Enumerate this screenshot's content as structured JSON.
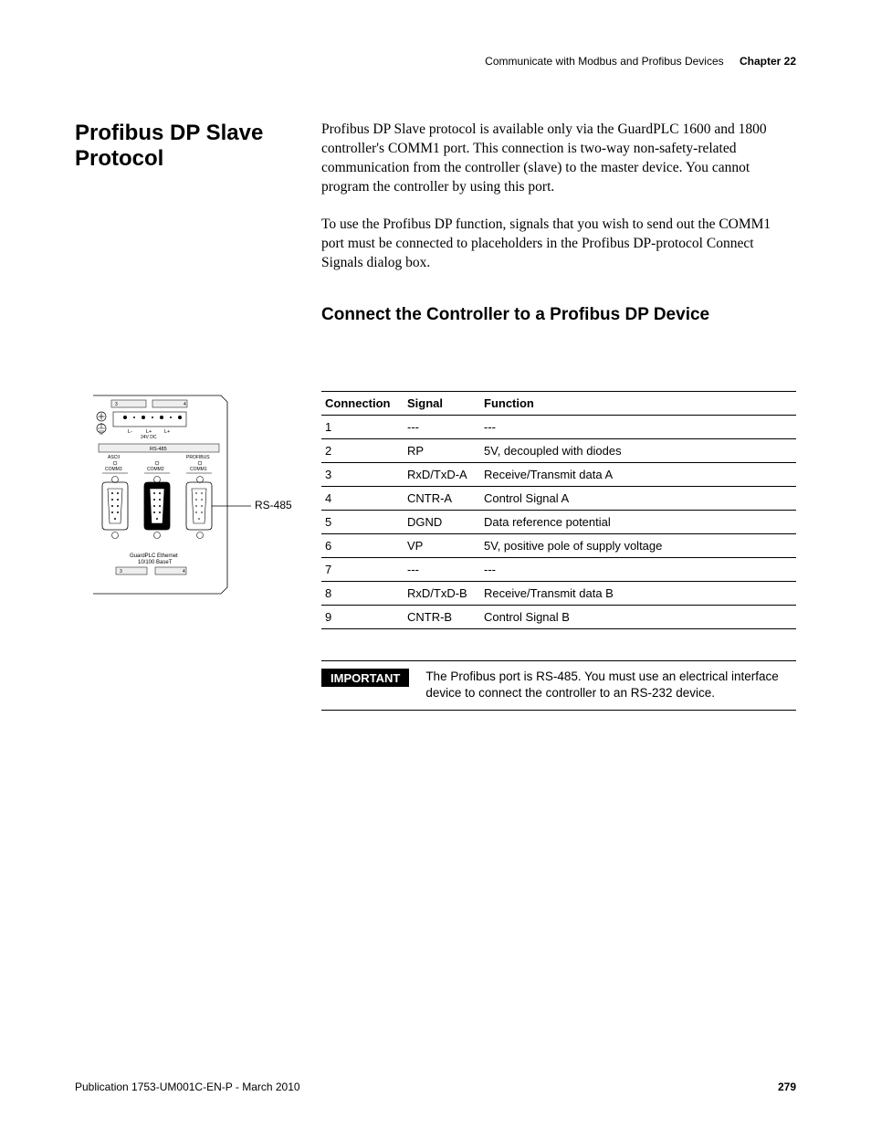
{
  "header": {
    "breadcrumb": "Communicate with Modbus and Profibus Devices",
    "chapter": "Chapter 22"
  },
  "sideHeading": "Profibus DP Slave Protocol",
  "para1": "Profibus DP Slave protocol is available only via the GuardPLC 1600 and 1800 controller's COMM1 port. This connection is two-way non-safety-related communication from the controller (slave) to the master device. You cannot program the controller by using this port.",
  "para2": "To use the Profibus DP function, signals that you wish to send out the COMM1 port must be connected to placeholders in the Profibus DP-protocol Connect Signals dialog box.",
  "subheading": "Connect the Controller to a Profibus DP Device",
  "diagram": {
    "callout": "RS-485",
    "top_strip1": "3",
    "top_strip2": "4",
    "power_labels": [
      "L-",
      "L+",
      "L+"
    ],
    "power_sub": "24V DC",
    "bus_label": "RS-485",
    "port1_top": "ASCII",
    "port1_bot": "COMM3",
    "port2_top": "",
    "port2_bot": "COMM2",
    "port3_top": "PROFIBUS",
    "port3_bot": "COMM1",
    "eth_line1": "GuardPLC Ethernet",
    "eth_line2": "10/100 BaseT",
    "bot_strip1": "3",
    "bot_strip2": "4"
  },
  "pinTable": {
    "headers": [
      "Connection",
      "Signal",
      "Function"
    ],
    "rows": [
      [
        "1",
        "---",
        "---"
      ],
      [
        "2",
        "RP",
        "5V, decoupled with diodes"
      ],
      [
        "3",
        "RxD/TxD-A",
        "Receive/Transmit data A"
      ],
      [
        "4",
        "CNTR-A",
        " Control Signal A"
      ],
      [
        "5",
        "DGND",
        "Data reference potential"
      ],
      [
        "6",
        "VP",
        "5V, positive pole of supply voltage"
      ],
      [
        "7",
        "---",
        "---"
      ],
      [
        "8",
        "RxD/TxD-B",
        "Receive/Transmit data B"
      ],
      [
        "9",
        "CNTR-B",
        "Control Signal B"
      ]
    ]
  },
  "important": {
    "tag": "IMPORTANT",
    "text": "The Profibus port is RS-485. You must use an electrical interface device to connect the controller to an RS-232 device."
  },
  "footer": {
    "pub": "Publication 1753-UM001C-EN-P - March 2010",
    "page": "279"
  },
  "colors": {
    "text": "#000000",
    "bg": "#ffffff",
    "rule": "#000000"
  }
}
